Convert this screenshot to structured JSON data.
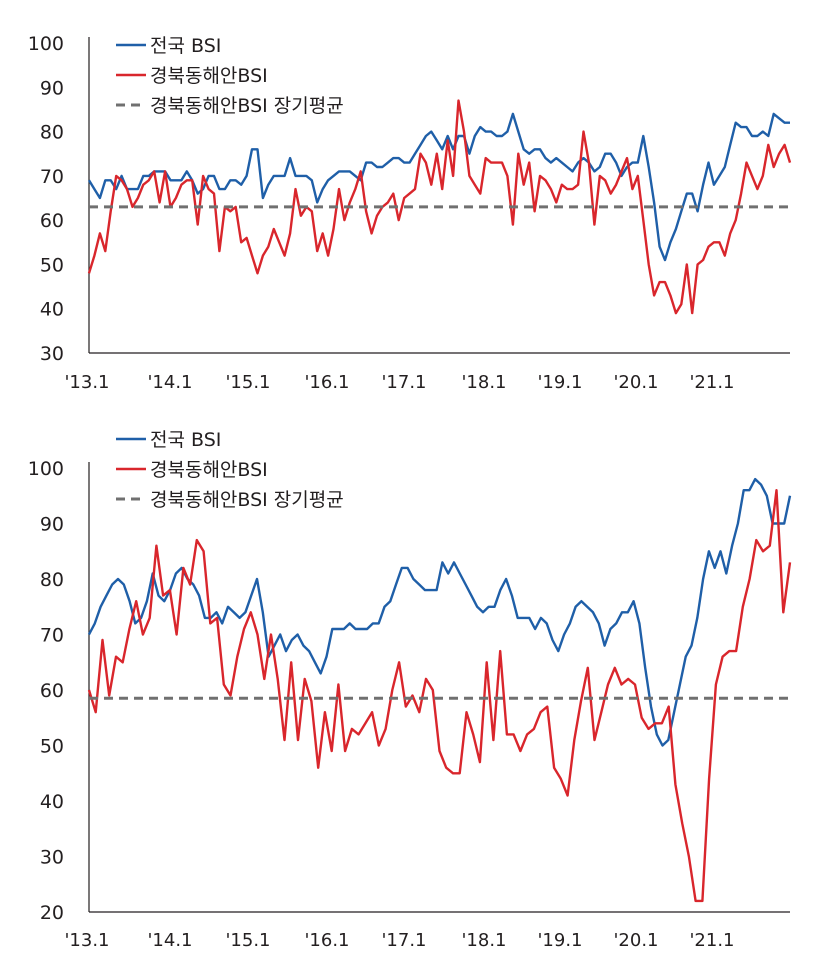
{
  "chart_data": [
    {
      "type": "line",
      "x_tick_labels": [
        "'13.1",
        "'14.1",
        "'15.1",
        "'16.1",
        "'17.1",
        "'18.1",
        "'19.1",
        "'20.1",
        "'21.1"
      ],
      "ylim": [
        30,
        100
      ],
      "y_ticks": [
        "30",
        "40",
        "50",
        "60",
        "70",
        "80",
        "90",
        "100"
      ],
      "legend_position": "top-left",
      "grid": false,
      "series": [
        {
          "name": "전국 BSI",
          "color": "#1f5fa8",
          "style": "solid",
          "values": [
            69,
            67,
            65,
            69,
            69,
            67,
            70,
            67,
            67,
            67,
            70,
            70,
            71,
            71,
            71,
            69,
            69,
            69,
            71,
            69,
            66,
            67,
            70,
            70,
            67,
            67,
            69,
            69,
            68,
            70,
            76,
            76,
            65,
            68,
            70,
            70,
            70,
            74,
            70,
            70,
            70,
            69,
            64,
            67,
            69,
            70,
            71,
            71,
            71,
            70,
            69,
            73,
            73,
            72,
            72,
            73,
            74,
            74,
            73,
            73,
            75,
            77,
            79,
            80,
            78,
            76,
            79,
            76,
            79,
            79,
            75,
            79,
            81,
            80,
            80,
            79,
            79,
            80,
            84,
            80,
            76,
            75,
            76,
            76,
            74,
            73,
            74,
            73,
            72,
            71,
            73,
            74,
            73,
            71,
            72,
            75,
            75,
            73,
            70,
            72,
            73,
            73,
            79,
            72,
            64,
            54,
            51,
            55,
            58,
            62,
            66,
            66,
            62,
            68,
            73,
            68,
            70,
            72,
            77,
            82,
            81,
            81,
            79,
            79,
            80,
            79,
            84,
            83,
            82,
            82
          ]
        },
        {
          "name": "경북동해안BSI",
          "color": "#d9262c",
          "style": "solid",
          "values": [
            48,
            52,
            57,
            53,
            62,
            70,
            69,
            67,
            63,
            65,
            68,
            69,
            71,
            64,
            71,
            63,
            65,
            68,
            69,
            69,
            59,
            70,
            67,
            66,
            53,
            63,
            62,
            63,
            55,
            56,
            52,
            48,
            52,
            54,
            58,
            55,
            52,
            57,
            67,
            61,
            63,
            62,
            53,
            57,
            52,
            58,
            67,
            60,
            64,
            67,
            71,
            62,
            57,
            61,
            63,
            64,
            66,
            60,
            65,
            66,
            67,
            75,
            73,
            68,
            75,
            67,
            78,
            70,
            87,
            80,
            70,
            68,
            66,
            74,
            73,
            73,
            73,
            70,
            59,
            75,
            68,
            73,
            62,
            70,
            69,
            67,
            64,
            68,
            67,
            67,
            68,
            80,
            73,
            59,
            70,
            69,
            66,
            68,
            71,
            74,
            67,
            70,
            60,
            50,
            43,
            46,
            46,
            43,
            39,
            41,
            50,
            39,
            50,
            51,
            54,
            55,
            55,
            52,
            57,
            60,
            66,
            73,
            70,
            67,
            70,
            77,
            72,
            75,
            77,
            73
          ]
        },
        {
          "name": "경북동해안BSI 장기평균",
          "color": "#707070",
          "style": "dashed",
          "values": [
            63,
            63
          ]
        }
      ]
    },
    {
      "type": "line",
      "x_tick_labels": [
        "'13.1",
        "'14.1",
        "'15.1",
        "'16.1",
        "'17.1",
        "'18.1",
        "'19.1",
        "'20.1",
        "'21.1"
      ],
      "ylim": [
        20,
        100
      ],
      "y_ticks": [
        "20",
        "30",
        "40",
        "50",
        "60",
        "70",
        "80",
        "90",
        "100"
      ],
      "legend_position": "top-left",
      "grid": false,
      "series": [
        {
          "name": "전국 BSI",
          "color": "#1f5fa8",
          "style": "solid",
          "values": [
            70,
            72,
            75,
            77,
            79,
            80,
            79,
            76,
            72,
            73,
            76,
            81,
            77,
            76,
            78,
            81,
            82,
            80,
            79,
            77,
            73,
            73,
            74,
            72,
            75,
            74,
            73,
            74,
            77,
            80,
            74,
            66,
            68,
            70,
            67,
            69,
            70,
            68,
            67,
            65,
            63,
            66,
            71,
            71,
            71,
            72,
            71,
            71,
            71,
            72,
            72,
            75,
            76,
            79,
            82,
            82,
            80,
            79,
            78,
            78,
            78,
            83,
            81,
            83,
            81,
            79,
            77,
            75,
            74,
            75,
            75,
            78,
            80,
            77,
            73,
            73,
            73,
            71,
            73,
            72,
            69,
            67,
            70,
            72,
            75,
            76,
            75,
            74,
            72,
            68,
            71,
            72,
            74,
            74,
            76,
            72,
            64,
            57,
            52,
            50,
            51,
            56,
            61,
            66,
            68,
            73,
            80,
            85,
            82,
            85,
            81,
            86,
            90,
            96,
            96,
            98,
            97,
            95,
            90,
            90,
            90,
            95
          ]
        },
        {
          "name": "경북동해안BSI",
          "color": "#d9262c",
          "style": "solid",
          "values": [
            60,
            56,
            69,
            59,
            66,
            65,
            71,
            76,
            70,
            73,
            86,
            77,
            78,
            70,
            82,
            79,
            87,
            85,
            72,
            73,
            61,
            59,
            66,
            71,
            74,
            70,
            62,
            70,
            62,
            51,
            65,
            51,
            62,
            58,
            46,
            56,
            49,
            61,
            49,
            53,
            52,
            54,
            56,
            50,
            53,
            60,
            65,
            57,
            59,
            56,
            62,
            60,
            49,
            46,
            45,
            45,
            56,
            52,
            47,
            65,
            51,
            67,
            52,
            52,
            49,
            52,
            53,
            56,
            57,
            46,
            44,
            41,
            51,
            58,
            64,
            51,
            56,
            61,
            64,
            61,
            62,
            61,
            55,
            53,
            54,
            54,
            57,
            43,
            36,
            30,
            22,
            22,
            44,
            61,
            66,
            67,
            67,
            75,
            80,
            87,
            85,
            86,
            96,
            74,
            83
          ]
        },
        {
          "name": "경북동해안BSI 장기평균",
          "color": "#707070",
          "style": "dashed",
          "values": [
            58.5,
            58.5
          ]
        }
      ]
    }
  ]
}
